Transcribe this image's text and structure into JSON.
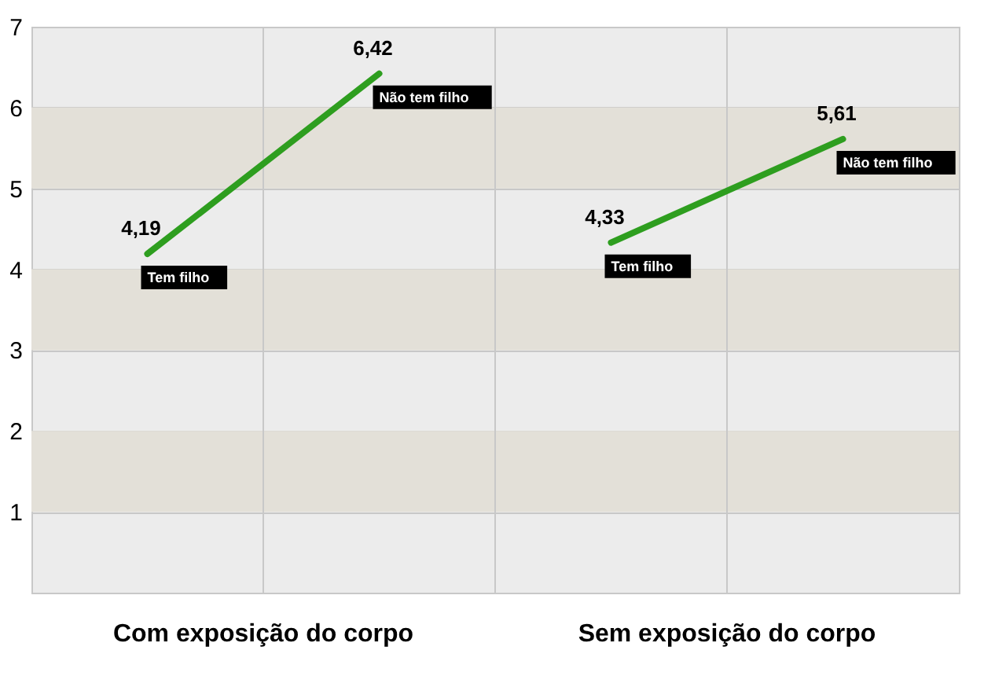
{
  "chart_data": {
    "type": "line",
    "categories": [
      null,
      null,
      null,
      null
    ],
    "series": [
      {
        "color": "#2e9e1f",
        "values": [
          4.19,
          6.42,
          null,
          null
        ],
        "value_labels": [
          "4,19",
          "6,42",
          null,
          null
        ]
      },
      {
        "color": "#2e9e1f",
        "values": [
          null,
          null,
          4.33,
          5.61
        ],
        "value_labels": [
          null,
          null,
          "4,33",
          "5,61"
        ]
      }
    ],
    "annotations": [
      "Com exposição do corpo",
      "Sem exposição do corpo",
      "Tem filho",
      "Não tem filho",
      "Tem filho",
      "Não tem filho"
    ],
    "ylim": [
      0,
      7
    ],
    "yticks": [
      1,
      2,
      3,
      4,
      5,
      6,
      7
    ],
    "grid": true,
    "tick_labels": "y",
    "bands": [
      {
        "axis": "y",
        "from": 1,
        "to": 2,
        "color": "#e3e0d8"
      },
      {
        "axis": "y",
        "from": 3,
        "to": 4,
        "color": "#e3e0d8"
      },
      {
        "axis": "y",
        "from": 5,
        "to": 6,
        "color": "#e3e0d8"
      }
    ]
  }
}
